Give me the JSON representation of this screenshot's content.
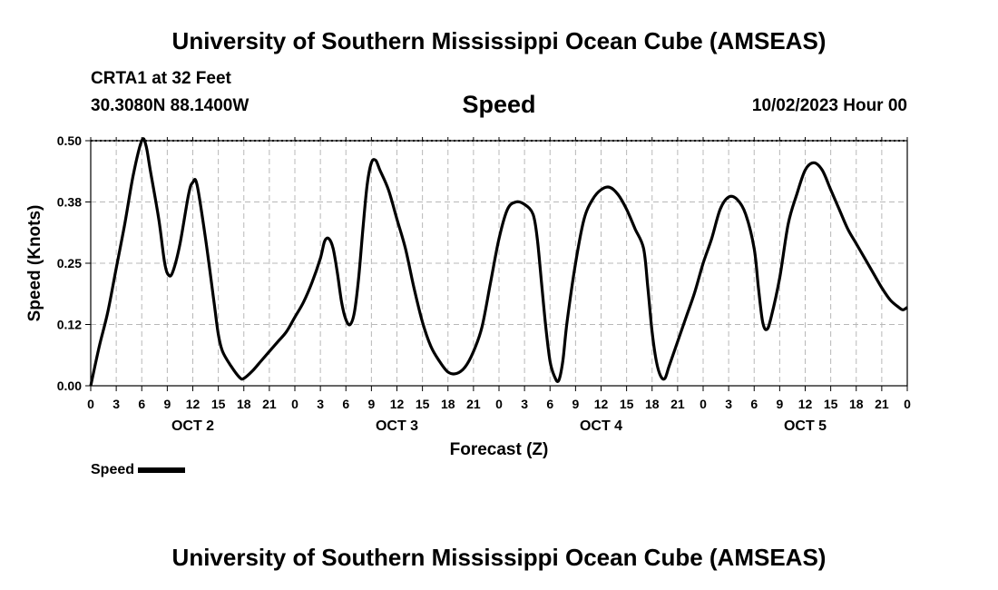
{
  "page": {
    "title_top": "University of Southern Mississippi Ocean Cube (AMSEAS)",
    "title_bottom": "University of Southern Mississippi Ocean Cube (AMSEAS)",
    "station": "CRTA1 at 32 Feet",
    "coords": "30.3080N  88.1400W",
    "chart_name": "Speed",
    "issued": "10/02/2023 Hour 00"
  },
  "chart_data": {
    "type": "line",
    "title": "Speed",
    "xlabel": "Forecast (Z)",
    "ylabel": "Speed (Knots)",
    "ylim": [
      0,
      0.5
    ],
    "yticks": [
      0.0,
      0.125,
      0.25,
      0.375,
      0.5
    ],
    "ytick_labels": [
      "0.00",
      "0.12",
      "0.25",
      "0.38",
      "0.50"
    ],
    "xlim": [
      0,
      96
    ],
    "xtick_labels": [
      "0",
      "3",
      "6",
      "9",
      "12",
      "15",
      "18",
      "21",
      "0",
      "3",
      "6",
      "9",
      "12",
      "15",
      "18",
      "21",
      "0",
      "3",
      "6",
      "9",
      "12",
      "15",
      "18",
      "21",
      "0",
      "3",
      "6",
      "9",
      "12",
      "15",
      "18",
      "21",
      "0"
    ],
    "day_labels": [
      {
        "label": "OCT 2",
        "at_hour": 12
      },
      {
        "label": "OCT 3",
        "at_hour": 36
      },
      {
        "label": "OCT 4",
        "at_hour": 60
      },
      {
        "label": "OCT 5",
        "at_hour": 84
      }
    ],
    "grid": true,
    "legend": "bottom-left",
    "series": [
      {
        "name": "Speed",
        "color": "#000000",
        "points": [
          [
            0,
            0.0
          ],
          [
            1,
            0.08
          ],
          [
            2,
            0.15
          ],
          [
            3,
            0.24
          ],
          [
            4,
            0.33
          ],
          [
            5,
            0.43
          ],
          [
            6,
            0.5
          ],
          [
            6.5,
            0.49
          ],
          [
            7,
            0.44
          ],
          [
            8,
            0.34
          ],
          [
            8.7,
            0.25
          ],
          [
            9.2,
            0.225
          ],
          [
            9.7,
            0.235
          ],
          [
            10.5,
            0.29
          ],
          [
            11.5,
            0.39
          ],
          [
            12,
            0.415
          ],
          [
            12.5,
            0.41
          ],
          [
            13.5,
            0.3
          ],
          [
            14.5,
            0.17
          ],
          [
            15,
            0.105
          ],
          [
            15.5,
            0.07
          ],
          [
            16.5,
            0.04
          ],
          [
            17.5,
            0.017
          ],
          [
            18,
            0.015
          ],
          [
            19,
            0.03
          ],
          [
            20,
            0.05
          ],
          [
            21,
            0.07
          ],
          [
            22,
            0.09
          ],
          [
            23,
            0.11
          ],
          [
            24,
            0.14
          ],
          [
            25,
            0.17
          ],
          [
            26,
            0.21
          ],
          [
            27,
            0.26
          ],
          [
            27.5,
            0.295
          ],
          [
            28,
            0.3
          ],
          [
            28.5,
            0.28
          ],
          [
            29,
            0.23
          ],
          [
            29.5,
            0.17
          ],
          [
            30,
            0.135
          ],
          [
            30.5,
            0.125
          ],
          [
            31,
            0.15
          ],
          [
            31.5,
            0.22
          ],
          [
            32,
            0.32
          ],
          [
            32.5,
            0.41
          ],
          [
            33,
            0.455
          ],
          [
            33.5,
            0.46
          ],
          [
            34,
            0.44
          ],
          [
            35,
            0.4
          ],
          [
            36,
            0.34
          ],
          [
            37,
            0.28
          ],
          [
            38,
            0.2
          ],
          [
            39,
            0.13
          ],
          [
            40,
            0.08
          ],
          [
            41,
            0.05
          ],
          [
            42,
            0.028
          ],
          [
            43,
            0.025
          ],
          [
            44,
            0.038
          ],
          [
            45,
            0.07
          ],
          [
            46,
            0.12
          ],
          [
            47,
            0.21
          ],
          [
            48,
            0.3
          ],
          [
            49,
            0.36
          ],
          [
            50,
            0.375
          ],
          [
            51,
            0.37
          ],
          [
            52,
            0.35
          ],
          [
            52.5,
            0.3
          ],
          [
            53,
            0.21
          ],
          [
            53.5,
            0.12
          ],
          [
            54,
            0.05
          ],
          [
            54.5,
            0.02
          ],
          [
            55,
            0.01
          ],
          [
            55.5,
            0.05
          ],
          [
            56,
            0.13
          ],
          [
            57,
            0.25
          ],
          [
            58,
            0.34
          ],
          [
            59,
            0.38
          ],
          [
            60,
            0.4
          ],
          [
            61,
            0.405
          ],
          [
            62,
            0.39
          ],
          [
            63,
            0.36
          ],
          [
            64,
            0.32
          ],
          [
            65,
            0.28
          ],
          [
            65.5,
            0.2
          ],
          [
            66,
            0.11
          ],
          [
            66.5,
            0.05
          ],
          [
            67,
            0.02
          ],
          [
            67.5,
            0.015
          ],
          [
            68,
            0.04
          ],
          [
            69,
            0.09
          ],
          [
            70,
            0.14
          ],
          [
            71,
            0.19
          ],
          [
            72,
            0.25
          ],
          [
            73,
            0.3
          ],
          [
            74,
            0.36
          ],
          [
            75,
            0.385
          ],
          [
            76,
            0.38
          ],
          [
            77,
            0.35
          ],
          [
            78,
            0.28
          ],
          [
            78.5,
            0.2
          ],
          [
            79,
            0.13
          ],
          [
            79.5,
            0.115
          ],
          [
            80,
            0.14
          ],
          [
            81,
            0.22
          ],
          [
            82,
            0.33
          ],
          [
            83,
            0.39
          ],
          [
            84,
            0.44
          ],
          [
            85,
            0.455
          ],
          [
            86,
            0.44
          ],
          [
            87,
            0.4
          ],
          [
            88,
            0.36
          ],
          [
            89,
            0.32
          ],
          [
            90,
            0.29
          ],
          [
            91,
            0.26
          ],
          [
            92,
            0.23
          ],
          [
            93,
            0.2
          ],
          [
            94,
            0.175
          ],
          [
            95,
            0.16
          ],
          [
            95.5,
            0.155
          ],
          [
            96,
            0.16
          ]
        ]
      }
    ],
    "legend_label": "Speed"
  }
}
